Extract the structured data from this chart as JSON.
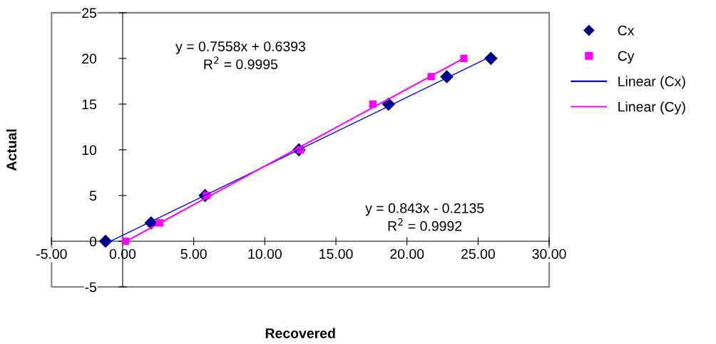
{
  "chart_data": {
    "type": "scatter",
    "xlabel": "Recovered",
    "ylabel": "Actual",
    "xlim": [
      -5,
      30
    ],
    "ylim": [
      -5,
      25
    ],
    "xticks": [
      {
        "value": -5,
        "label": "-5.00"
      },
      {
        "value": 0,
        "label": "0.00"
      },
      {
        "value": 5,
        "label": "5.00"
      },
      {
        "value": 10,
        "label": "10.00"
      },
      {
        "value": 15,
        "label": "15.00"
      },
      {
        "value": 20,
        "label": "20.00"
      },
      {
        "value": 25,
        "label": "25.00"
      },
      {
        "value": 30,
        "label": "30.00"
      }
    ],
    "yticks": [
      -5,
      0,
      5,
      10,
      15,
      20,
      25
    ],
    "grid": false,
    "legend": "right",
    "series": [
      {
        "name": "Cx",
        "marker": "diamond",
        "color": "#000080",
        "x": [
          -1.2,
          2.0,
          5.8,
          12.4,
          18.7,
          22.8,
          25.9
        ],
        "values": [
          0,
          2,
          5,
          10,
          15,
          18,
          20
        ]
      },
      {
        "name": "Cy",
        "marker": "square",
        "color": "#ff00ff",
        "x": [
          0.2,
          2.6,
          5.9,
          12.5,
          17.6,
          21.7,
          24.0
        ],
        "values": [
          0,
          2,
          5,
          10,
          15,
          18,
          20
        ]
      },
      {
        "name": "Linear (Cx)",
        "type": "line",
        "marker": "none",
        "color": "#0000ff",
        "x": [
          -1.2,
          25.9
        ],
        "values": [
          -0.27,
          20.21
        ]
      },
      {
        "name": "Linear (Cy)",
        "type": "line",
        "marker": "none",
        "color": "#ff00ff",
        "x": [
          0.2,
          24.0
        ],
        "values": [
          -0.05,
          20.02
        ]
      }
    ],
    "annotations": [
      "y = 0.7558x + 0.6393\nR$^{2}$ = 0.9995",
      "y = 0.843x - 0.2135\nR$^{2}$ = 0.9992"
    ]
  }
}
